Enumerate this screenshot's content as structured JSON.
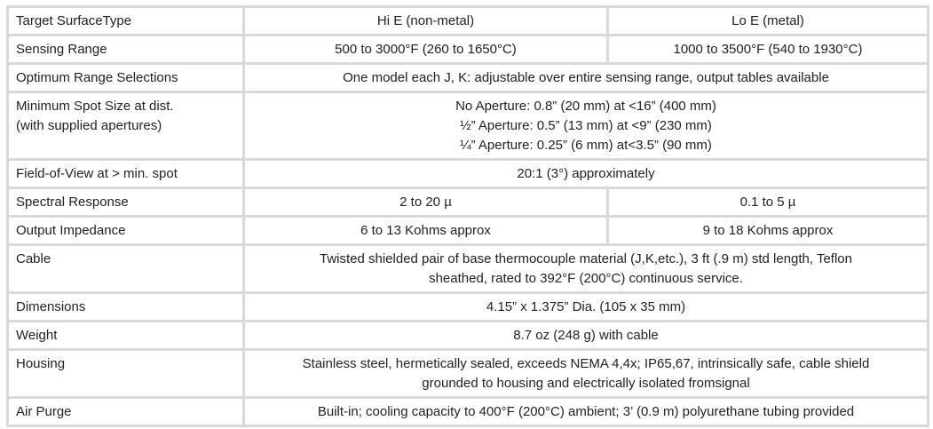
{
  "header": {
    "label": "Target SurfaceType",
    "hi": "Hi E (non-metal)",
    "lo": "Lo E (metal)"
  },
  "rows": [
    {
      "label": "Sensing Range",
      "hi": "500 to 3000°F (260 to 1650°C)",
      "lo": "1000 to 3500°F (540 to 1930°C)"
    },
    {
      "label": "Optimum Range Selections",
      "value": "One model each J, K: adjustable over entire sensing range, output tables available"
    },
    {
      "label_lines": [
        "Minimum Spot Size at dist.",
        "(with supplied apertures)"
      ],
      "value_lines": [
        "No Aperture: 0.8” (20 mm) at <16” (400 mm)",
        "½” Aperture: 0.5” (13 mm) at <9” (230 mm)",
        "¼” Aperture: 0.25” (6 mm) at<3.5” (90 mm)"
      ]
    },
    {
      "label": "Field-of-View at > min. spot",
      "value": "20:1 (3°) approximately"
    },
    {
      "label": "Spectral Response",
      "hi": "2 to 20 µ",
      "lo": "0.1 to 5 µ"
    },
    {
      "label": "Output Impedance",
      "hi": "6 to 13 Kohms approx",
      "lo": "9 to 18 Kohms approx"
    },
    {
      "label": "Cable",
      "value_lines": [
        "Twisted shielded pair of base thermocouple material (J,K,etc.), 3 ft (.9 m) std length, Teflon",
        "sheathed, rated to 392°F (200°C) continuous service."
      ]
    },
    {
      "label": "Dimensions",
      "value": "4.15” x 1.375” Dia. (105 x 35 mm)"
    },
    {
      "label": "Weight",
      "value": "8.7 oz (248 g) with cable"
    },
    {
      "label": "Housing",
      "value_lines": [
        "Stainless steel, hermetically sealed, exceeds NEMA 4,4x; IP65,67, intrinsically safe, cable shield",
        "grounded to housing and electrically isolated fromsignal"
      ]
    },
    {
      "label": "Air Purge",
      "value": "Built-in; cooling capacity to 400°F (200°C) ambient; 3’ (0.9 m) polyurethane tubing provided"
    }
  ]
}
